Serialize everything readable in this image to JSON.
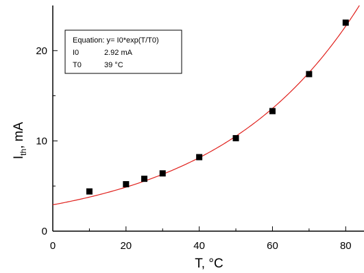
{
  "chart_data": {
    "type": "scatter",
    "xlabel": "T, °C",
    "ylabel_main": "I",
    "ylabel_sub": "th",
    "ylabel_unit": ", mA",
    "xlim": [
      0,
      85
    ],
    "ylim": [
      0,
      25
    ],
    "x_ticks": [
      0,
      20,
      40,
      60,
      80
    ],
    "y_ticks": [
      0,
      10,
      20
    ],
    "series": [
      {
        "x": [
          10,
          20,
          25,
          30,
          40,
          50,
          60,
          70,
          80
        ],
        "y": [
          4.4,
          5.2,
          5.8,
          6.4,
          8.2,
          10.3,
          13.3,
          17.4,
          23.1
        ]
      }
    ],
    "fit": {
      "function": "exponential",
      "I0": 2.92,
      "T0": 39,
      "equation": "Equation: y= I0*exp(T/T0)",
      "params": [
        {
          "name": "I0",
          "value": "2.92 mA"
        },
        {
          "name": "T0",
          "value": "39   °C"
        }
      ]
    },
    "marker_color": "#000000",
    "fit_color": "#e0201c",
    "grid": false
  }
}
